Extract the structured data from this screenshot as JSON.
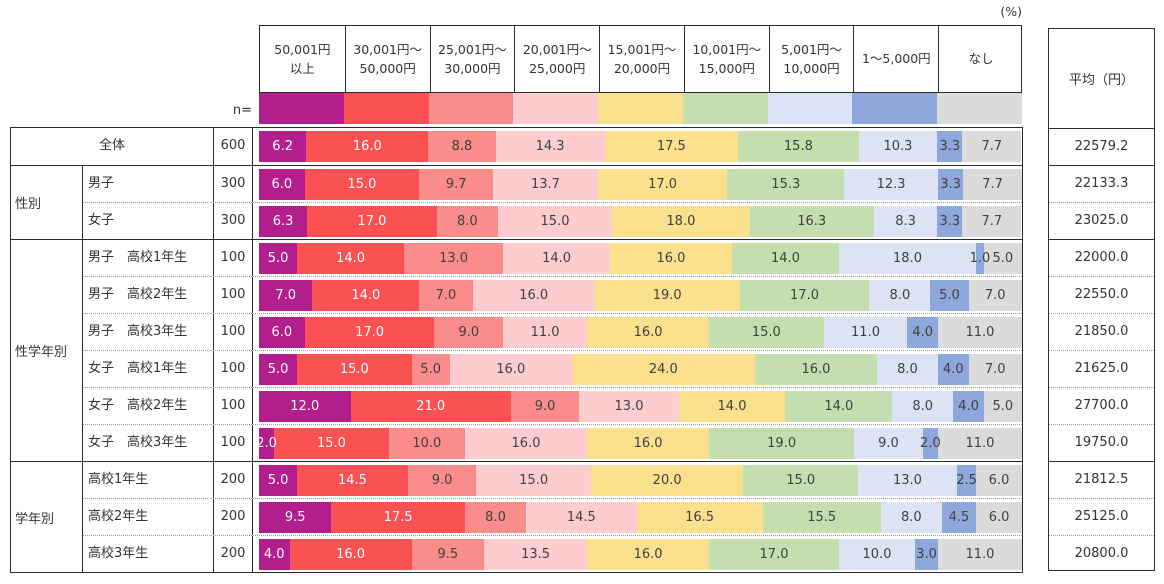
{
  "unit_label": "(%)",
  "n_label": "n=",
  "avg_header": "平均（円）",
  "chart_data": {
    "type": "bar",
    "orientation": "horizontal-stacked",
    "unit": "%",
    "x_range": [
      0,
      100
    ],
    "title": "",
    "categories": [
      "50,001円以上",
      "30,001円〜50,000円",
      "25,001円〜30,000円",
      "20,001円〜25,000円",
      "15,001円〜20,000円",
      "10,001円〜15,000円",
      "5,001円〜10,000円",
      "1〜5,000円",
      "なし"
    ],
    "category_lines": [
      [
        "50,001円",
        "以上"
      ],
      [
        "30,001円〜",
        "50,000円"
      ],
      [
        "25,001円〜",
        "30,000円"
      ],
      [
        "20,001円〜",
        "25,000円"
      ],
      [
        "15,001円〜",
        "20,000円"
      ],
      [
        "10,001円〜",
        "15,000円"
      ],
      [
        "5,001円〜",
        "10,000円"
      ],
      [
        "1〜5,000円"
      ],
      [
        "なし"
      ]
    ],
    "colors": [
      "#B21E8C",
      "#FA5252",
      "#FA8C8C",
      "#FCCCCE",
      "#FBE08D",
      "#C5DEB0",
      "#DBE3F4",
      "#8EA8DB",
      "#DBDBDB"
    ],
    "label_text_colors": [
      "#FFFFFF",
      "#FFFFFF",
      "#404040",
      "#404040",
      "#404040",
      "#404040",
      "#404040",
      "#404040",
      "#404040"
    ],
    "mean_header": "平均（円）",
    "groups": [
      {
        "label": "",
        "merged": true,
        "rows": [
          {
            "label": "全体",
            "n": 600,
            "values": [
              6.2,
              16.0,
              8.8,
              14.3,
              17.5,
              15.8,
              10.3,
              3.3,
              7.7
            ],
            "mean": "22579.2"
          }
        ]
      },
      {
        "label": "性別",
        "rows": [
          {
            "label": "男子",
            "n": 300,
            "values": [
              6.0,
              15.0,
              9.7,
              13.7,
              17.0,
              15.3,
              12.3,
              3.3,
              7.7
            ],
            "mean": "22133.3"
          },
          {
            "label": "女子",
            "n": 300,
            "values": [
              6.3,
              17.0,
              8.0,
              15.0,
              18.0,
              16.3,
              8.3,
              3.3,
              7.7
            ],
            "mean": "23025.0"
          }
        ]
      },
      {
        "label": "性学年別",
        "rows": [
          {
            "label": "男子　高校1年生",
            "n": 100,
            "values": [
              5.0,
              14.0,
              13.0,
              14.0,
              16.0,
              14.0,
              18.0,
              1.0,
              5.0
            ],
            "mean": "22000.0"
          },
          {
            "label": "男子　高校2年生",
            "n": 100,
            "values": [
              7.0,
              14.0,
              7.0,
              16.0,
              19.0,
              17.0,
              8.0,
              5.0,
              7.0
            ],
            "mean": "22550.0"
          },
          {
            "label": "男子　高校3年生",
            "n": 100,
            "values": [
              6.0,
              17.0,
              9.0,
              11.0,
              16.0,
              15.0,
              11.0,
              4.0,
              11.0
            ],
            "mean": "21850.0"
          },
          {
            "label": "女子　高校1年生",
            "n": 100,
            "values": [
              5.0,
              15.0,
              5.0,
              16.0,
              24.0,
              16.0,
              8.0,
              4.0,
              7.0
            ],
            "mean": "21625.0"
          },
          {
            "label": "女子　高校2年生",
            "n": 100,
            "values": [
              12.0,
              21.0,
              9.0,
              13.0,
              14.0,
              14.0,
              8.0,
              4.0,
              5.0
            ],
            "mean": "27700.0"
          },
          {
            "label": "女子　高校3年生",
            "n": 100,
            "values": [
              2.0,
              15.0,
              10.0,
              16.0,
              16.0,
              19.0,
              9.0,
              2.0,
              11.0
            ],
            "mean": "19750.0"
          }
        ]
      },
      {
        "label": "学年別",
        "rows": [
          {
            "label": "高校1年生",
            "n": 200,
            "values": [
              5.0,
              14.5,
              9.0,
              15.0,
              20.0,
              15.0,
              13.0,
              2.5,
              6.0
            ],
            "mean": "21812.5"
          },
          {
            "label": "高校2年生",
            "n": 200,
            "values": [
              9.5,
              17.5,
              8.0,
              14.5,
              16.5,
              15.5,
              8.0,
              4.5,
              6.0
            ],
            "mean": "25125.0"
          },
          {
            "label": "高校3年生",
            "n": 200,
            "values": [
              4.0,
              16.0,
              9.5,
              13.5,
              16.0,
              17.0,
              10.0,
              3.0,
              11.0
            ],
            "mean": "20800.0"
          }
        ]
      }
    ]
  }
}
